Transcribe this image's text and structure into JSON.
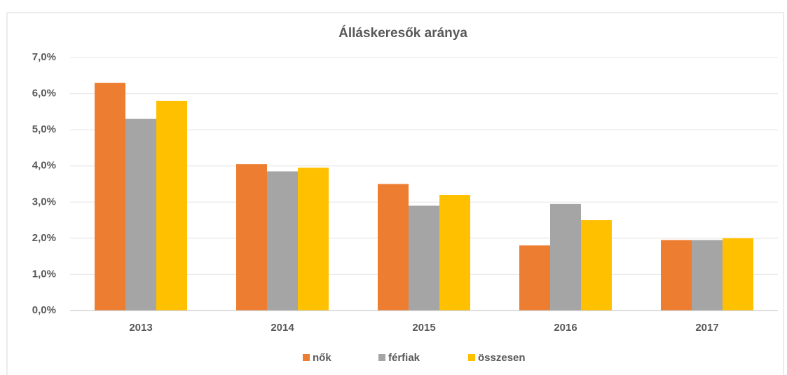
{
  "chart_data": {
    "type": "bar",
    "title": "Álláskeresők aránya",
    "categories": [
      "2013",
      "2014",
      "2015",
      "2016",
      "2017"
    ],
    "series": [
      {
        "name": "nők",
        "color": "#ed7d31",
        "values": [
          6.3,
          4.05,
          3.5,
          1.8,
          1.95
        ]
      },
      {
        "name": "férfiak",
        "color": "#a5a5a5",
        "values": [
          5.3,
          3.85,
          2.9,
          2.95,
          1.95
        ]
      },
      {
        "name": "összesen",
        "color": "#ffc000",
        "values": [
          5.8,
          3.95,
          3.2,
          2.5,
          2.0
        ]
      }
    ],
    "ylim": [
      0,
      7
    ],
    "yticks": [
      {
        "value": 0,
        "label": "0,0%"
      },
      {
        "value": 1,
        "label": "1,0%"
      },
      {
        "value": 2,
        "label": "2,0%"
      },
      {
        "value": 3,
        "label": "3,0%"
      },
      {
        "value": 4,
        "label": "4,0%"
      },
      {
        "value": 5,
        "label": "5,0%"
      },
      {
        "value": 6,
        "label": "6,0%"
      },
      {
        "value": 7,
        "label": "7,0%"
      }
    ],
    "grid": true,
    "legend": "bottom"
  }
}
